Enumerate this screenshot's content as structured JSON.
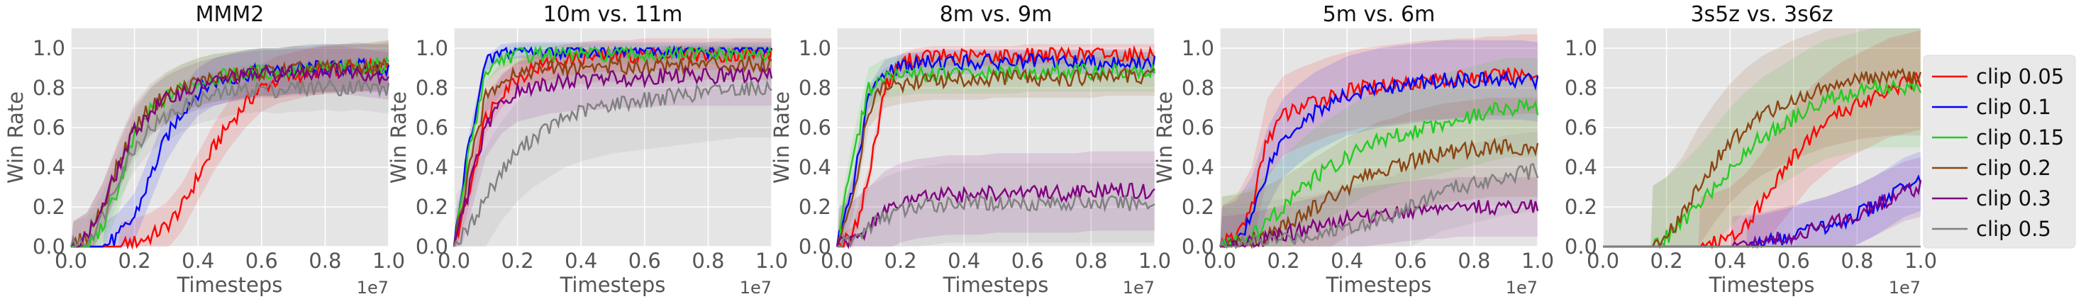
{
  "chart_data": [
    {
      "type": "line",
      "title": "MMM2",
      "xlabel": "Timesteps",
      "ylabel": "Win Rate",
      "x_offset_label": "1e7",
      "xlim": [
        0,
        1.0
      ],
      "ylim": [
        0,
        1.1
      ],
      "xticks": [
        "0.0",
        "0.2",
        "0.4",
        "0.6",
        "0.8",
        "1.0"
      ],
      "yticks": [
        "0.0",
        "0.2",
        "0.4",
        "0.6",
        "0.8",
        "1.0"
      ],
      "grid": true,
      "x": [
        0.0,
        0.05,
        0.1,
        0.15,
        0.2,
        0.25,
        0.3,
        0.35,
        0.4,
        0.45,
        0.5,
        0.55,
        0.6,
        0.65,
        0.7,
        0.75,
        0.8,
        0.85,
        0.9,
        0.95,
        1.0
      ],
      "series": [
        {
          "name": "clip 0.05",
          "values": [
            0,
            0,
            0,
            0,
            0.02,
            0.05,
            0.1,
            0.2,
            0.35,
            0.5,
            0.62,
            0.72,
            0.8,
            0.84,
            0.86,
            0.88,
            0.89,
            0.9,
            0.9,
            0.91,
            0.92
          ],
          "spread": 0.12
        },
        {
          "name": "clip 0.1",
          "values": [
            0,
            0,
            0,
            0.05,
            0.15,
            0.35,
            0.55,
            0.68,
            0.78,
            0.83,
            0.85,
            0.87,
            0.88,
            0.88,
            0.89,
            0.9,
            0.9,
            0.9,
            0.91,
            0.9,
            0.9
          ],
          "spread": 0.12
        },
        {
          "name": "clip 0.15",
          "values": [
            0,
            0,
            0.1,
            0.3,
            0.55,
            0.68,
            0.75,
            0.8,
            0.83,
            0.85,
            0.86,
            0.87,
            0.88,
            0.88,
            0.89,
            0.89,
            0.9,
            0.9,
            0.9,
            0.91,
            0.92
          ],
          "spread": 0.12
        },
        {
          "name": "clip 0.2",
          "values": [
            0,
            0.05,
            0.2,
            0.42,
            0.6,
            0.7,
            0.76,
            0.8,
            0.83,
            0.85,
            0.86,
            0.87,
            0.88,
            0.88,
            0.89,
            0.89,
            0.9,
            0.9,
            0.9,
            0.9,
            0.91
          ],
          "spread": 0.12
        },
        {
          "name": "clip 0.3",
          "values": [
            0,
            0.05,
            0.2,
            0.4,
            0.58,
            0.68,
            0.74,
            0.78,
            0.81,
            0.83,
            0.85,
            0.86,
            0.87,
            0.87,
            0.88,
            0.88,
            0.89,
            0.89,
            0.88,
            0.87,
            0.86
          ],
          "spread": 0.12
        },
        {
          "name": "clip 0.5",
          "values": [
            0,
            0.03,
            0.15,
            0.35,
            0.5,
            0.6,
            0.65,
            0.7,
            0.74,
            0.76,
            0.78,
            0.79,
            0.8,
            0.79,
            0.8,
            0.8,
            0.81,
            0.8,
            0.81,
            0.8,
            0.79
          ],
          "spread": 0.12
        }
      ]
    },
    {
      "type": "line",
      "title": "10m vs. 11m",
      "xlabel": "Timesteps",
      "ylabel": "Win Rate",
      "x_offset_label": "1e7",
      "xlim": [
        0,
        1.0
      ],
      "ylim": [
        0,
        1.1
      ],
      "xticks": [
        "0.0",
        "0.2",
        "0.4",
        "0.6",
        "0.8",
        "1.0"
      ],
      "yticks": [
        "0.0",
        "0.2",
        "0.4",
        "0.6",
        "0.8",
        "1.0"
      ],
      "grid": true,
      "x": [
        0.0,
        0.05,
        0.1,
        0.15,
        0.2,
        0.25,
        0.3,
        0.35,
        0.4,
        0.45,
        0.5,
        0.55,
        0.6,
        0.65,
        0.7,
        0.75,
        0.8,
        0.85,
        0.9,
        0.95,
        1.0
      ],
      "series": [
        {
          "name": "clip 0.05",
          "values": [
            0,
            0.3,
            0.65,
            0.78,
            0.85,
            0.9,
            0.92,
            0.94,
            0.95,
            0.96,
            0.96,
            0.96,
            0.97,
            0.97,
            0.97,
            0.97,
            0.97,
            0.97,
            0.97,
            0.97,
            0.97
          ],
          "spread": 0.08
        },
        {
          "name": "clip 0.1",
          "values": [
            0,
            0.55,
            0.92,
            0.98,
            0.99,
            0.99,
            0.99,
            0.99,
            0.99,
            0.99,
            0.99,
            0.99,
            0.99,
            0.99,
            0.99,
            0.99,
            0.99,
            0.99,
            0.99,
            0.99,
            0.99
          ],
          "spread": 0.04
        },
        {
          "name": "clip 0.15",
          "values": [
            0,
            0.5,
            0.88,
            0.95,
            0.97,
            0.97,
            0.97,
            0.97,
            0.97,
            0.97,
            0.97,
            0.97,
            0.97,
            0.97,
            0.97,
            0.97,
            0.97,
            0.97,
            0.97,
            0.97,
            0.96
          ],
          "spread": 0.05
        },
        {
          "name": "clip 0.2",
          "values": [
            0,
            0.4,
            0.75,
            0.85,
            0.88,
            0.89,
            0.9,
            0.9,
            0.9,
            0.91,
            0.91,
            0.91,
            0.91,
            0.91,
            0.92,
            0.92,
            0.92,
            0.92,
            0.92,
            0.92,
            0.92
          ],
          "spread": 0.08
        },
        {
          "name": "clip 0.3",
          "values": [
            0,
            0.3,
            0.6,
            0.72,
            0.78,
            0.8,
            0.82,
            0.83,
            0.84,
            0.84,
            0.85,
            0.85,
            0.85,
            0.86,
            0.86,
            0.86,
            0.86,
            0.86,
            0.86,
            0.86,
            0.86
          ],
          "spread": 0.15
        },
        {
          "name": "clip 0.5",
          "values": [
            0,
            0.1,
            0.25,
            0.38,
            0.48,
            0.55,
            0.6,
            0.65,
            0.68,
            0.7,
            0.72,
            0.73,
            0.74,
            0.75,
            0.76,
            0.77,
            0.78,
            0.79,
            0.8,
            0.8,
            0.8
          ],
          "spread": 0.25
        }
      ]
    },
    {
      "type": "line",
      "title": "8m vs. 9m",
      "xlabel": "Timesteps",
      "ylabel": "Win Rate",
      "x_offset_label": "1e7",
      "xlim": [
        0,
        1.0
      ],
      "ylim": [
        0,
        1.1
      ],
      "xticks": [
        "0.0",
        "0.2",
        "0.4",
        "0.6",
        "0.8",
        "1.0"
      ],
      "yticks": [
        "0.0",
        "0.2",
        "0.4",
        "0.6",
        "0.8",
        "1.0"
      ],
      "grid": true,
      "x": [
        0.0,
        0.05,
        0.1,
        0.15,
        0.2,
        0.25,
        0.3,
        0.35,
        0.4,
        0.45,
        0.5,
        0.55,
        0.6,
        0.65,
        0.7,
        0.75,
        0.8,
        0.85,
        0.9,
        0.95,
        1.0
      ],
      "series": [
        {
          "name": "clip 0.05",
          "values": [
            0,
            0.05,
            0.35,
            0.8,
            0.92,
            0.95,
            0.96,
            0.96,
            0.96,
            0.96,
            0.96,
            0.96,
            0.97,
            0.97,
            0.97,
            0.97,
            0.97,
            0.97,
            0.97,
            0.97,
            0.97
          ],
          "spread": 0.05
        },
        {
          "name": "clip 0.1",
          "values": [
            0,
            0.3,
            0.75,
            0.88,
            0.91,
            0.92,
            0.93,
            0.93,
            0.93,
            0.93,
            0.93,
            0.93,
            0.93,
            0.93,
            0.93,
            0.93,
            0.93,
            0.93,
            0.93,
            0.92,
            0.92
          ],
          "spread": 0.06
        },
        {
          "name": "clip 0.15",
          "values": [
            0,
            0.45,
            0.8,
            0.85,
            0.86,
            0.87,
            0.87,
            0.87,
            0.87,
            0.87,
            0.87,
            0.87,
            0.88,
            0.88,
            0.88,
            0.88,
            0.88,
            0.88,
            0.88,
            0.88,
            0.88
          ],
          "spread": 0.1
        },
        {
          "name": "clip 0.2",
          "values": [
            0,
            0.25,
            0.7,
            0.8,
            0.82,
            0.83,
            0.84,
            0.84,
            0.84,
            0.84,
            0.85,
            0.85,
            0.85,
            0.85,
            0.85,
            0.85,
            0.85,
            0.86,
            0.86,
            0.86,
            0.86
          ],
          "spread": 0.1
        },
        {
          "name": "clip 0.3",
          "values": [
            0,
            0.03,
            0.1,
            0.18,
            0.22,
            0.24,
            0.25,
            0.26,
            0.26,
            0.26,
            0.27,
            0.27,
            0.27,
            0.27,
            0.27,
            0.27,
            0.28,
            0.28,
            0.28,
            0.28,
            0.28
          ],
          "spread": 0.2
        },
        {
          "name": "clip 0.5",
          "values": [
            0,
            0.03,
            0.1,
            0.15,
            0.18,
            0.2,
            0.21,
            0.22,
            0.22,
            0.22,
            0.22,
            0.22,
            0.22,
            0.22,
            0.22,
            0.22,
            0.22,
            0.22,
            0.22,
            0.22,
            0.22
          ],
          "spread": 0.2
        }
      ]
    },
    {
      "type": "line",
      "title": "5m vs. 6m",
      "xlabel": "Timesteps",
      "ylabel": "Win Rate",
      "x_offset_label": "1e7",
      "xlim": [
        0,
        1.0
      ],
      "ylim": [
        0,
        1.1
      ],
      "xticks": [
        "0.0",
        "0.2",
        "0.4",
        "0.6",
        "0.8",
        "1.0"
      ],
      "yticks": [
        "0.0",
        "0.2",
        "0.4",
        "0.6",
        "0.8",
        "1.0"
      ],
      "grid": true,
      "x": [
        0.0,
        0.05,
        0.1,
        0.15,
        0.2,
        0.25,
        0.3,
        0.35,
        0.4,
        0.45,
        0.5,
        0.55,
        0.6,
        0.65,
        0.7,
        0.75,
        0.8,
        0.85,
        0.9,
        0.95,
        1.0
      ],
      "series": [
        {
          "name": "clip 0.05",
          "values": [
            0,
            0.05,
            0.2,
            0.55,
            0.66,
            0.7,
            0.73,
            0.76,
            0.78,
            0.8,
            0.81,
            0.82,
            0.83,
            0.84,
            0.84,
            0.85,
            0.85,
            0.86,
            0.86,
            0.87,
            0.87
          ],
          "spread": 0.2
        },
        {
          "name": "clip 0.1",
          "values": [
            0,
            0.03,
            0.15,
            0.4,
            0.55,
            0.62,
            0.68,
            0.72,
            0.76,
            0.78,
            0.8,
            0.81,
            0.82,
            0.83,
            0.84,
            0.84,
            0.84,
            0.84,
            0.84,
            0.84,
            0.83
          ],
          "spread": 0.2
        },
        {
          "name": "clip 0.15",
          "values": [
            0,
            0.02,
            0.05,
            0.12,
            0.2,
            0.28,
            0.35,
            0.4,
            0.45,
            0.5,
            0.53,
            0.56,
            0.58,
            0.6,
            0.62,
            0.64,
            0.66,
            0.68,
            0.7,
            0.7,
            0.7
          ],
          "spread": 0.25
        },
        {
          "name": "clip 0.2",
          "values": [
            0,
            0.01,
            0.03,
            0.06,
            0.1,
            0.15,
            0.2,
            0.25,
            0.3,
            0.34,
            0.38,
            0.4,
            0.43,
            0.45,
            0.47,
            0.48,
            0.49,
            0.5,
            0.5,
            0.5,
            0.5
          ],
          "spread": 0.25
        },
        {
          "name": "clip 0.3",
          "values": [
            0,
            0.01,
            0.02,
            0.04,
            0.06,
            0.08,
            0.1,
            0.12,
            0.14,
            0.15,
            0.16,
            0.17,
            0.18,
            0.19,
            0.19,
            0.2,
            0.2,
            0.2,
            0.2,
            0.2,
            0.2
          ],
          "spread": 0.15
        },
        {
          "name": "clip 0.5",
          "values": [
            0,
            0.01,
            0.02,
            0.03,
            0.04,
            0.05,
            0.06,
            0.08,
            0.1,
            0.12,
            0.14,
            0.16,
            0.2,
            0.24,
            0.28,
            0.3,
            0.32,
            0.34,
            0.36,
            0.37,
            0.38
          ],
          "spread": 0.2
        }
      ]
    },
    {
      "type": "line",
      "title": "3s5z vs. 3s6z",
      "xlabel": "Timesteps",
      "ylabel": "",
      "x_offset_label": "1e7",
      "xlim": [
        0,
        1.0
      ],
      "ylim": [
        0,
        1.1
      ],
      "xticks": [
        "0.0",
        "0.2",
        "0.4",
        "0.6",
        "0.8",
        "1.0"
      ],
      "yticks": [
        "0.0",
        "0.2",
        "0.4",
        "0.6",
        "0.8",
        "1.0"
      ],
      "grid": true,
      "x": [
        0.0,
        0.05,
        0.1,
        0.15,
        0.2,
        0.25,
        0.3,
        0.35,
        0.4,
        0.45,
        0.5,
        0.55,
        0.6,
        0.65,
        0.7,
        0.75,
        0.8,
        0.85,
        0.9,
        0.95,
        1.0
      ],
      "series": [
        {
          "name": "clip 0.05",
          "values": [
            0,
            0,
            0,
            0,
            0,
            0,
            0,
            0.02,
            0.05,
            0.12,
            0.22,
            0.35,
            0.45,
            0.55,
            0.62,
            0.68,
            0.72,
            0.76,
            0.8,
            0.82,
            0.84
          ],
          "spread": 0.25
        },
        {
          "name": "clip 0.1",
          "values": [
            0,
            0,
            0,
            0,
            0,
            0,
            0,
            0,
            0,
            0,
            0.01,
            0.03,
            0.05,
            0.08,
            0.1,
            0.13,
            0.16,
            0.2,
            0.25,
            0.3,
            0.33
          ],
          "spread": 0.15
        },
        {
          "name": "clip 0.15",
          "values": [
            0,
            0,
            0,
            0,
            0.05,
            0.12,
            0.2,
            0.3,
            0.4,
            0.48,
            0.55,
            0.6,
            0.65,
            0.7,
            0.74,
            0.76,
            0.78,
            0.8,
            0.8,
            0.8,
            0.8
          ],
          "spread": 0.3
        },
        {
          "name": "clip 0.2",
          "values": [
            0,
            0,
            0,
            0,
            0.05,
            0.15,
            0.3,
            0.42,
            0.52,
            0.6,
            0.66,
            0.7,
            0.74,
            0.77,
            0.8,
            0.82,
            0.84,
            0.85,
            0.86,
            0.86,
            0.86
          ],
          "spread": 0.3
        },
        {
          "name": "clip 0.3",
          "values": [
            0,
            0,
            0,
            0,
            0,
            0,
            0,
            0,
            0,
            0.01,
            0.02,
            0.04,
            0.06,
            0.08,
            0.1,
            0.13,
            0.16,
            0.2,
            0.24,
            0.28,
            0.3
          ],
          "spread": 0.15
        },
        {
          "name": "clip 0.5",
          "values": [
            0,
            0,
            0,
            0,
            0,
            0,
            0,
            0,
            0,
            0,
            0,
            0,
            0,
            0,
            0,
            0,
            0,
            0,
            0,
            0,
            0
          ],
          "spread": 0.02
        }
      ]
    }
  ],
  "legend": {
    "placement": "right",
    "entries": [
      {
        "label": "clip 0.05",
        "color": "#ff0000"
      },
      {
        "label": "clip 0.1",
        "color": "#0000ff"
      },
      {
        "label": "clip 0.15",
        "color": "#22cc22"
      },
      {
        "label": "clip 0.2",
        "color": "#8b4513"
      },
      {
        "label": "clip 0.3",
        "color": "#800080"
      },
      {
        "label": "clip 0.5",
        "color": "#808080"
      }
    ]
  },
  "colors": {
    "plot_background": "#e5e5e5",
    "grid": "#ffffff",
    "axis_text": "#555555"
  }
}
